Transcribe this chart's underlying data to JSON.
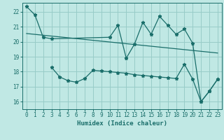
{
  "xlabel": "Humidex (Indice chaleur)",
  "background_color": "#c0e8e4",
  "grid_color": "#98ccc8",
  "line_color": "#1a6e6a",
  "xlim": [
    -0.5,
    23.5
  ],
  "ylim": [
    15.5,
    22.6
  ],
  "yticks": [
    16,
    17,
    18,
    19,
    20,
    21,
    22
  ],
  "xticks": [
    0,
    1,
    2,
    3,
    4,
    5,
    6,
    7,
    8,
    9,
    10,
    11,
    12,
    13,
    14,
    15,
    16,
    17,
    18,
    19,
    20,
    21,
    22,
    23
  ],
  "line1_x": [
    0,
    1,
    2,
    3,
    10,
    11,
    12,
    13,
    14,
    15,
    16,
    17,
    18,
    19,
    20,
    21,
    22,
    23
  ],
  "line1_y": [
    22.35,
    21.8,
    20.3,
    20.2,
    20.3,
    21.1,
    18.9,
    19.85,
    21.3,
    20.5,
    21.7,
    21.1,
    20.5,
    20.85,
    19.9,
    16.0,
    16.7,
    17.5
  ],
  "line2_x": [
    0,
    23
  ],
  "line2_y": [
    20.55,
    19.25
  ],
  "line3_x": [
    3,
    4,
    5,
    6,
    7,
    8,
    9,
    10,
    11,
    12,
    13,
    14,
    15,
    16,
    17,
    18,
    19,
    20,
    21,
    22,
    23
  ],
  "line3_y": [
    18.3,
    17.65,
    17.4,
    17.3,
    17.55,
    18.1,
    18.05,
    18.0,
    17.95,
    17.9,
    17.8,
    17.75,
    17.7,
    17.65,
    17.6,
    17.55,
    18.5,
    17.5,
    16.0,
    16.7,
    17.5
  ]
}
